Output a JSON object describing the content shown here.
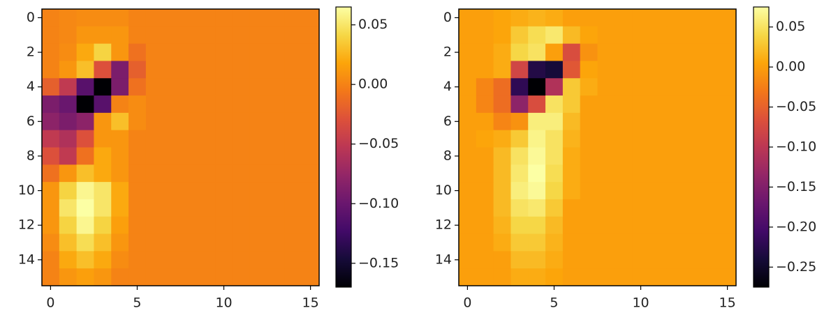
{
  "chart_data": [
    {
      "type": "heatmap",
      "colormap": "inferno",
      "xlim": [
        -0.5,
        15.5
      ],
      "ylim": [
        15.5,
        -0.5
      ],
      "xticks": [
        0,
        5,
        10,
        15
      ],
      "yticks": [
        0,
        2,
        4,
        6,
        8,
        10,
        12,
        14
      ],
      "zlim": [
        -0.17,
        0.065
      ],
      "zticks": [
        0.05,
        {
          "value": 0,
          "label": "0.00"
        },
        {
          "value": -0.05,
          "label": "−0.05"
        },
        {
          "value": -0.1,
          "label": "−0.10"
        },
        {
          "value": -0.15,
          "label": "−0.15"
        }
      ],
      "z": [
        [
          0,
          0.003,
          0.005,
          0.005,
          0.005,
          0,
          0,
          0,
          0,
          0,
          0,
          0,
          0,
          0,
          0,
          0
        ],
        [
          0,
          0.003,
          0.01,
          0.01,
          0.01,
          0,
          0,
          0,
          0,
          0,
          0,
          0,
          0,
          0,
          0,
          0
        ],
        [
          0,
          0.005,
          0.02,
          0.04,
          0.01,
          -0.01,
          0,
          0,
          0,
          0,
          0,
          0,
          0,
          0,
          0,
          0
        ],
        [
          0,
          0.01,
          0.03,
          -0.03,
          -0.09,
          -0.02,
          0,
          0,
          0,
          0,
          0,
          0,
          0,
          0,
          0,
          0
        ],
        [
          -0.02,
          -0.05,
          -0.11,
          -0.17,
          -0.09,
          -0.01,
          0,
          0,
          0,
          0,
          0,
          0,
          0,
          0,
          0,
          0
        ],
        [
          -0.09,
          -0.1,
          -0.17,
          -0.11,
          0,
          0.005,
          0,
          0,
          0,
          0,
          0,
          0,
          0,
          0,
          0,
          0
        ],
        [
          -0.08,
          -0.09,
          -0.08,
          0.01,
          0.03,
          0.005,
          0,
          0,
          0,
          0,
          0,
          0,
          0,
          0,
          0,
          0
        ],
        [
          -0.05,
          -0.06,
          -0.03,
          0.01,
          0.01,
          0,
          0,
          0,
          0,
          0,
          0,
          0,
          0,
          0,
          0,
          0
        ],
        [
          -0.03,
          -0.05,
          -0.01,
          0.02,
          0.01,
          0,
          0,
          0,
          0,
          0,
          0,
          0,
          0,
          0,
          0,
          0
        ],
        [
          -0.01,
          0.01,
          0.03,
          0.02,
          0.01,
          0,
          0,
          0,
          0,
          0,
          0,
          0,
          0,
          0,
          0,
          0
        ],
        [
          0.01,
          0.04,
          0.06,
          0.05,
          0.02,
          0,
          0,
          0,
          0,
          0,
          0,
          0,
          0,
          0,
          0,
          0
        ],
        [
          0.01,
          0.05,
          0.065,
          0.05,
          0.02,
          0,
          0,
          0,
          0,
          0,
          0,
          0,
          0,
          0,
          0,
          0
        ],
        [
          0.01,
          0.04,
          0.06,
          0.04,
          0.015,
          0,
          0,
          0,
          0,
          0,
          0,
          0,
          0,
          0,
          0,
          0
        ],
        [
          0.005,
          0.03,
          0.045,
          0.03,
          0.01,
          0,
          0,
          0,
          0,
          0,
          0,
          0,
          0,
          0,
          0,
          0
        ],
        [
          0,
          0.02,
          0.03,
          0.02,
          0.005,
          0,
          0,
          0,
          0,
          0,
          0,
          0,
          0,
          0,
          0,
          0
        ],
        [
          0,
          0.01,
          0.015,
          0.01,
          0,
          0,
          0,
          0,
          0,
          0,
          0,
          0,
          0,
          0,
          0,
          0
        ]
      ]
    },
    {
      "type": "heatmap",
      "colormap": "inferno",
      "xlim": [
        -0.5,
        15.5
      ],
      "ylim": [
        15.5,
        -0.5
      ],
      "xticks": [
        0,
        5,
        10,
        15
      ],
      "yticks": [
        0,
        2,
        4,
        6,
        8,
        10,
        12,
        14
      ],
      "zlim": [
        -0.275,
        0.075
      ],
      "zticks": [
        0.05,
        {
          "value": 0,
          "label": "0.00"
        },
        {
          "value": -0.05,
          "label": "−0.05"
        },
        {
          "value": -0.1,
          "label": "−0.10"
        },
        {
          "value": -0.15,
          "label": "−0.15"
        },
        {
          "value": -0.2,
          "label": "−0.20"
        },
        {
          "value": -0.25,
          "label": "−0.25"
        }
      ],
      "z": [
        [
          0,
          0,
          0.005,
          0.01,
          0.015,
          0.01,
          0,
          0,
          0,
          0,
          0,
          0,
          0,
          0,
          0,
          0
        ],
        [
          0,
          0,
          0.005,
          0.03,
          0.045,
          0.055,
          0.02,
          0.005,
          0,
          0,
          0,
          0,
          0,
          0,
          0,
          0
        ],
        [
          0,
          0,
          0.01,
          0.04,
          0.05,
          0,
          -0.07,
          -0.01,
          0,
          0,
          0,
          0,
          0,
          0,
          0,
          0
        ],
        [
          0,
          0,
          0.01,
          -0.08,
          -0.23,
          -0.24,
          -0.06,
          0.005,
          0,
          0,
          0,
          0,
          0,
          0,
          0,
          0
        ],
        [
          0,
          -0.02,
          -0.04,
          -0.22,
          -0.275,
          -0.11,
          0.03,
          0.01,
          0,
          0,
          0,
          0,
          0,
          0,
          0,
          0
        ],
        [
          0,
          -0.02,
          -0.04,
          -0.14,
          -0.07,
          0.05,
          0.03,
          0,
          0,
          0,
          0,
          0,
          0,
          0,
          0,
          0
        ],
        [
          0,
          0,
          -0.02,
          -0.01,
          0.06,
          0.06,
          0.02,
          0,
          0,
          0,
          0,
          0,
          0,
          0,
          0,
          0
        ],
        [
          0,
          0.005,
          0.01,
          0.03,
          0.065,
          0.05,
          0.015,
          0,
          0,
          0,
          0,
          0,
          0,
          0,
          0,
          0
        ],
        [
          0,
          0,
          0.02,
          0.05,
          0.07,
          0.05,
          0.01,
          0,
          0,
          0,
          0,
          0,
          0,
          0,
          0,
          0
        ],
        [
          0,
          0,
          0.02,
          0.055,
          0.075,
          0.045,
          0.01,
          0,
          0,
          0,
          0,
          0,
          0,
          0,
          0,
          0
        ],
        [
          0,
          0,
          0.02,
          0.06,
          0.07,
          0.04,
          0.01,
          0,
          0,
          0,
          0,
          0,
          0,
          0,
          0,
          0
        ],
        [
          0,
          0,
          0.02,
          0.05,
          0.055,
          0.03,
          0,
          0,
          0,
          0,
          0,
          0,
          0,
          0,
          0,
          0
        ],
        [
          0,
          0,
          0.015,
          0.04,
          0.04,
          0.02,
          0,
          0,
          0,
          0,
          0,
          0,
          0,
          0,
          0,
          0
        ],
        [
          0,
          0,
          0.01,
          0.03,
          0.03,
          0.015,
          0,
          0,
          0,
          0,
          0,
          0,
          0,
          0,
          0,
          0
        ],
        [
          0,
          0,
          0,
          0.02,
          0.02,
          0.01,
          0,
          0,
          0,
          0,
          0,
          0,
          0,
          0,
          0,
          0
        ],
        [
          0,
          0,
          0,
          0.01,
          0.01,
          0.005,
          0,
          0,
          0,
          0,
          0,
          0,
          0,
          0,
          0,
          0
        ]
      ]
    }
  ]
}
